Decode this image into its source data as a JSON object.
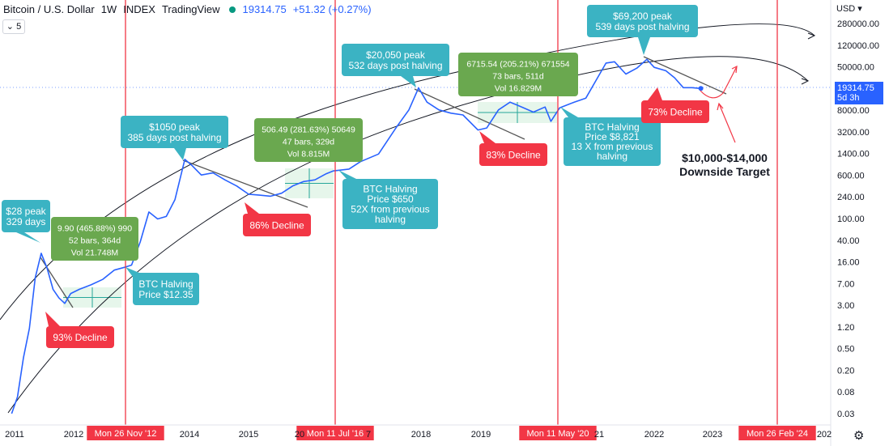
{
  "header": {
    "symbol": "Bitcoin / U.S. Dollar",
    "interval": "1W",
    "source": "INDEX",
    "platform": "TradingView",
    "price": "19314.75",
    "change": "+51.32 (+0.27%)"
  },
  "collapse_label": "5",
  "currency_label": "USD",
  "price_badge": {
    "price": "19314.75",
    "countdown": "5d 3h"
  },
  "colors": {
    "price_line": "#2962ff",
    "halving_line": "#f23645",
    "teal_box": "#3bb3c3",
    "green_box": "#6aa84f",
    "decline_box": "#f23645",
    "channel": "#131722"
  },
  "chart_data": {
    "type": "line",
    "title": "",
    "xlabel": "",
    "ylabel": "",
    "y_scale": "log",
    "xlim": [
      2010.95,
      2024.9
    ],
    "ylim": [
      0.025,
      500000
    ],
    "y_ticks": [
      "280000.00",
      "120000.00",
      "50000.00",
      "20000.00",
      "8000.00",
      "3200.00",
      "1400.00",
      "600.00",
      "240.00",
      "100.00",
      "40.00",
      "16.00",
      "7.00",
      "3.00",
      "1.20",
      "0.50",
      "0.20",
      "0.08",
      "0.03"
    ],
    "x_ticks": [
      "2011",
      "2012",
      "2014",
      "2015",
      "20",
      "7",
      "2018",
      "2019",
      "21",
      "2022",
      "2023",
      "202"
    ],
    "halving_dates": [
      "Mon 26 Nov '12",
      "Mon 11 Jul '16",
      "Mon 11 May '20",
      "Mon 26 Feb '24"
    ],
    "series": [
      {
        "x": [
          2010.95,
          2011.05,
          2011.15,
          2011.25,
          2011.35,
          2011.45,
          2011.55,
          2011.65,
          2011.75,
          2011.85,
          2011.95,
          2012.1,
          2012.3,
          2012.5,
          2012.7,
          2012.9,
          2013.0,
          2013.15,
          2013.3,
          2013.45,
          2013.6,
          2013.75,
          2013.92,
          2014.05,
          2014.2,
          2014.4,
          2014.6,
          2014.8,
          2015.0,
          2015.2,
          2015.4,
          2015.6,
          2015.8,
          2016.0,
          2016.2,
          2016.4,
          2016.52,
          2016.8,
          2017.0,
          2017.3,
          2017.6,
          2017.8,
          2017.96,
          2018.1,
          2018.3,
          2018.5,
          2018.7,
          2018.95,
          2019.1,
          2019.3,
          2019.5,
          2019.7,
          2019.9,
          2020.1,
          2020.2,
          2020.35,
          2020.6,
          2020.8,
          2021.0,
          2021.15,
          2021.3,
          2021.5,
          2021.7,
          2021.87,
          2022.0,
          2022.2,
          2022.35,
          2022.5,
          2022.65,
          2022.8
        ],
        "y": [
          0.03,
          0.06,
          0.3,
          1.0,
          8,
          22,
          12,
          5,
          3.5,
          2.8,
          4.2,
          5,
          6,
          7.5,
          11,
          12.5,
          13.5,
          35,
          120,
          90,
          100,
          200,
          1050,
          800,
          550,
          600,
          450,
          350,
          250,
          240,
          230,
          260,
          350,
          420,
          450,
          580,
          650,
          700,
          950,
          1300,
          4000,
          8000,
          19800,
          11000,
          8000,
          7000,
          6500,
          3500,
          3800,
          8000,
          11000,
          9000,
          7300,
          9000,
          5000,
          8700,
          11000,
          13000,
          30000,
          55000,
          58000,
          35000,
          45000,
          64000,
          46000,
          40000,
          30000,
          20000,
          20000,
          19314.75
        ]
      }
    ],
    "measure_boxes": [
      {
        "line1": "9.90 (465.88%) 990",
        "line2": "52 bars, 364d",
        "line3": "Vol 21.748M"
      },
      {
        "line1": "506.49 (281.63%) 50649",
        "line2": "47 bars, 329d",
        "line3": "Vol 8.815M"
      },
      {
        "line1": "6715.54 (205.21%) 671554",
        "line2": "73 bars, 511d",
        "line3": "Vol 16.829M"
      }
    ],
    "annotations": {
      "peaks": [
        {
          "line1": "$28 peak",
          "line2": "329 days"
        },
        {
          "line1": "$1050 peak",
          "line2": "385 days post halving"
        },
        {
          "line1": "$20,050 peak",
          "line2": "532 days post halving"
        },
        {
          "line1": "$69,200 peak",
          "line2": "539 days post halving"
        }
      ],
      "halvings": [
        {
          "line1": "BTC Halving",
          "line2": "Price $12.35"
        },
        {
          "line1": "BTC Halving",
          "line2": "Price $650",
          "line3": "52X from previous",
          "line4": "halving"
        },
        {
          "line1": "BTC Halving",
          "line2": "Price $8,821",
          "line3": "13 X from previous",
          "line4": "halving"
        }
      ],
      "declines": [
        "93% Decline",
        "86% Decline",
        "83% Decline",
        "73% Decline"
      ],
      "target": {
        "line1": "$10,000-$14,000",
        "line2": "Downside Target"
      }
    }
  }
}
